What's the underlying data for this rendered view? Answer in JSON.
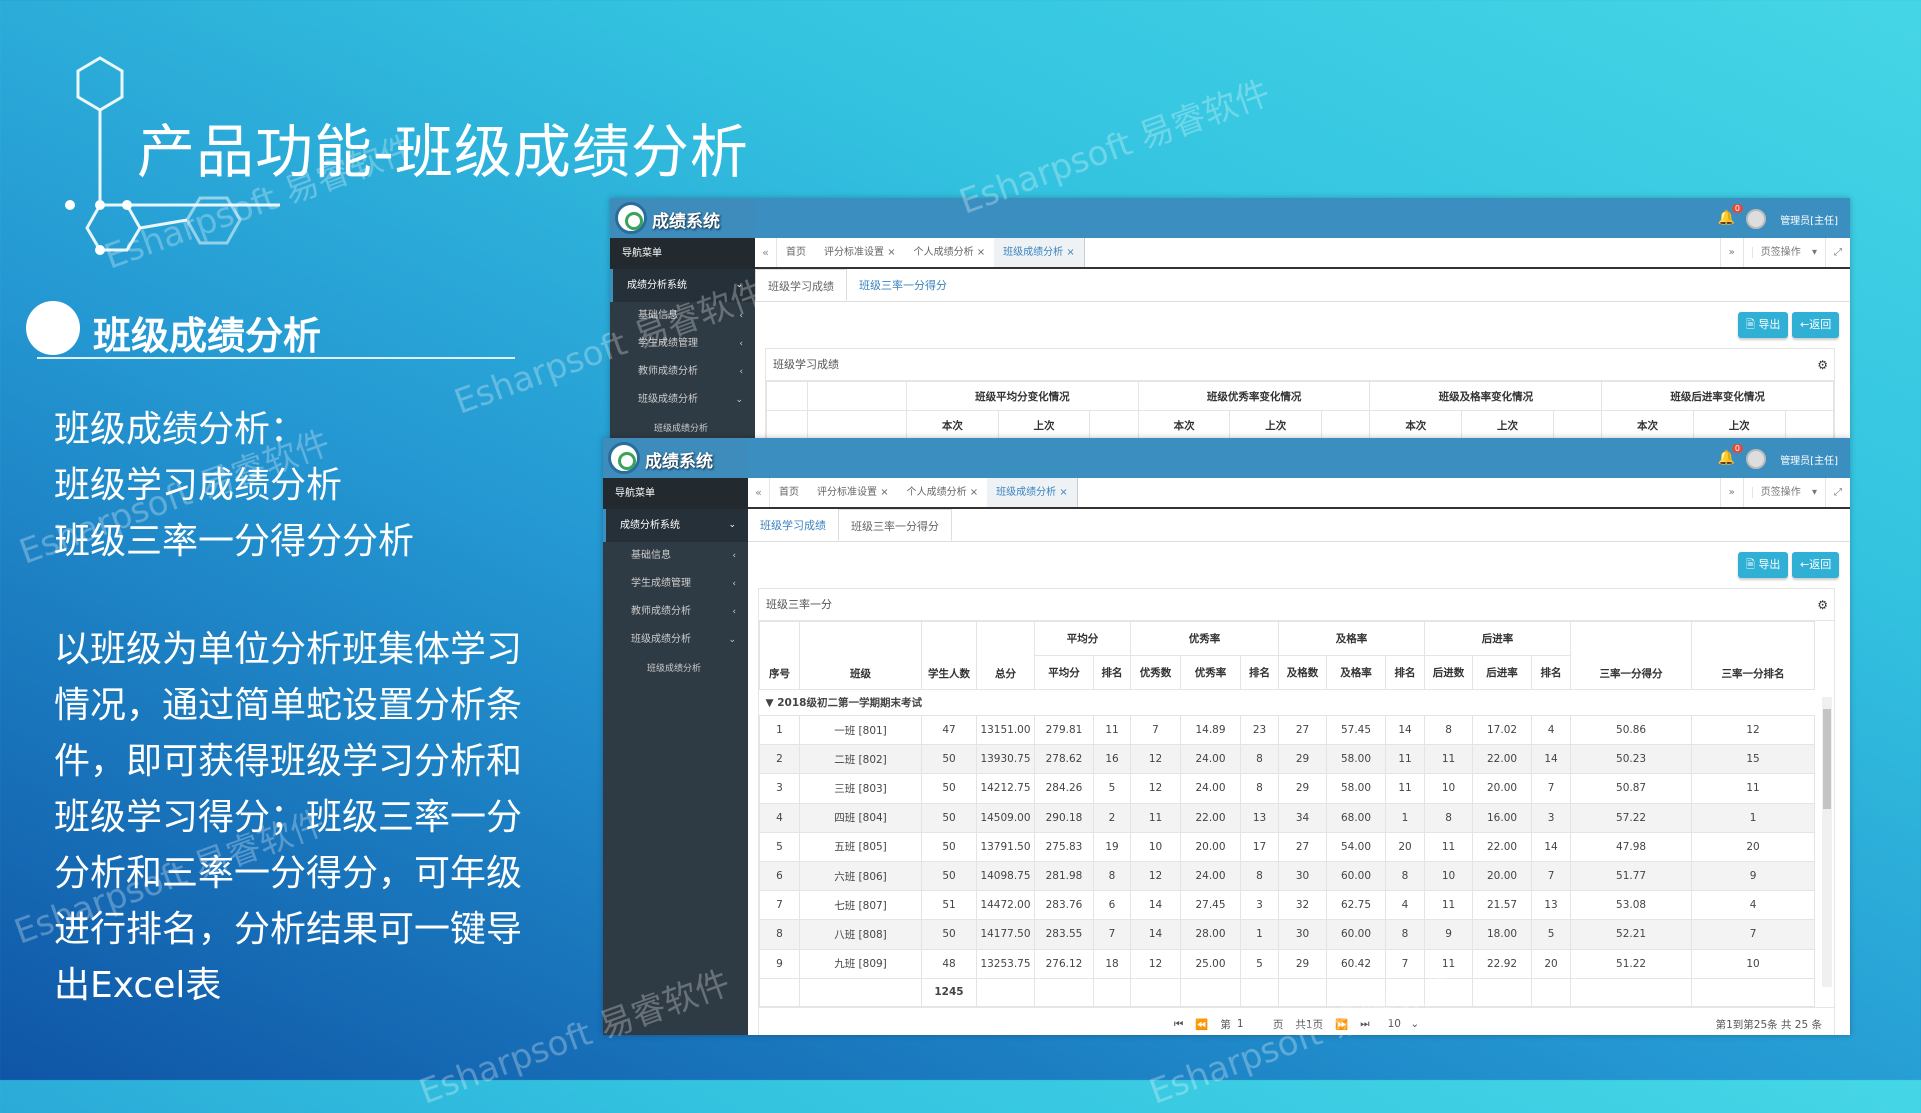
{
  "slide": {
    "title": "产品功能-班级成绩分析",
    "section_heading": "班级成绩分析",
    "feature_lines": [
      "班级成绩分析：",
      "班级学习成绩分析",
      "班级三率一分得分分析"
    ],
    "description": "以班级为单位分析班集体学习情况，通过简单蛇设置分析条件，即可获得班级学习分析和班级学习得分；班级三率一分分析和三率一分得分，可年级进行排名，分析结果可一键导出Excel表",
    "watermark": "Esharpsoft 易睿软件",
    "colors": {
      "bg_top": "#45d6e6",
      "bg_bottom": "#0f55a6",
      "app_header": "#3b8fc0",
      "sidebar": "#2f3b44",
      "button": "#31b0d5"
    }
  },
  "app": {
    "name": "成绩系统",
    "notification_count": "0",
    "user": "管理员[主任]",
    "sidebar": {
      "nav_label": "导航菜单",
      "system": "成绩分析系统",
      "items": [
        "基础信息",
        "学生成绩管理",
        "教师成绩分析",
        "班级成绩分析"
      ],
      "sub_item": "班级成绩分析"
    },
    "tabs": [
      "首页",
      "评分标准设置",
      "个人成绩分析",
      "班级成绩分析"
    ],
    "active_tab": "班级成绩分析",
    "page_ops": "页签操作",
    "subtabs": [
      "班级学习成绩",
      "班级三率一分得分"
    ],
    "export_label": "导出",
    "back_label": "返回"
  },
  "top_view": {
    "panel_title": "班级学习成绩",
    "groups": [
      "班级平均分变化情况",
      "班级优秀率变化情况",
      "班级及格率变化情况",
      "班级后进率变化情况"
    ],
    "sub_headers": [
      "本次",
      "上次"
    ]
  },
  "bottom_view": {
    "panel_title": "班级三率一分",
    "group_headers": [
      "平均分",
      "优秀率",
      "及格率",
      "后进率"
    ],
    "columns": [
      "序号",
      "班级",
      "学生人数",
      "总分",
      "平均分",
      "排名",
      "优秀数",
      "优秀率",
      "排名",
      "及格数",
      "及格率",
      "排名",
      "后进数",
      "后进率",
      "排名",
      "三率一分得分",
      "三率一分排名"
    ],
    "group_row": "2018级初二第一学期期末考试",
    "rows": [
      [
        "1",
        "一班  [801]",
        "47",
        "13151.00",
        "279.81",
        "11",
        "7",
        "14.89",
        "23",
        "27",
        "57.45",
        "14",
        "8",
        "17.02",
        "4",
        "50.86",
        "12"
      ],
      [
        "2",
        "二班  [802]",
        "50",
        "13930.75",
        "278.62",
        "16",
        "12",
        "24.00",
        "8",
        "29",
        "58.00",
        "11",
        "11",
        "22.00",
        "14",
        "50.23",
        "15"
      ],
      [
        "3",
        "三班  [803]",
        "50",
        "14212.75",
        "284.26",
        "5",
        "12",
        "24.00",
        "8",
        "29",
        "58.00",
        "11",
        "10",
        "20.00",
        "7",
        "50.87",
        "11"
      ],
      [
        "4",
        "四班  [804]",
        "50",
        "14509.00",
        "290.18",
        "2",
        "11",
        "22.00",
        "13",
        "34",
        "68.00",
        "1",
        "8",
        "16.00",
        "3",
        "57.22",
        "1"
      ],
      [
        "5",
        "五班  [805]",
        "50",
        "13791.50",
        "275.83",
        "19",
        "10",
        "20.00",
        "17",
        "27",
        "54.00",
        "20",
        "11",
        "22.00",
        "14",
        "47.98",
        "20"
      ],
      [
        "6",
        "六班  [806]",
        "50",
        "14098.75",
        "281.98",
        "8",
        "12",
        "24.00",
        "8",
        "30",
        "60.00",
        "8",
        "10",
        "20.00",
        "7",
        "51.77",
        "9"
      ],
      [
        "7",
        "七班  [807]",
        "51",
        "14472.00",
        "283.76",
        "6",
        "14",
        "27.45",
        "3",
        "32",
        "62.75",
        "4",
        "11",
        "21.57",
        "13",
        "53.08",
        "4"
      ],
      [
        "8",
        "八班  [808]",
        "50",
        "14177.50",
        "283.55",
        "7",
        "14",
        "28.00",
        "1",
        "30",
        "60.00",
        "8",
        "9",
        "18.00",
        "5",
        "52.21",
        "7"
      ],
      [
        "9",
        "九班  [809]",
        "48",
        "13253.75",
        "276.12",
        "18",
        "12",
        "25.00",
        "5",
        "29",
        "60.42",
        "7",
        "11",
        "22.92",
        "20",
        "51.22",
        "10"
      ]
    ],
    "total_students": "1245",
    "pager": {
      "page_prefix": "第",
      "page": "1",
      "page_suffix": "页",
      "total_pages": "共1页",
      "page_size": "10",
      "info": "第1到第25条  共 25 条"
    }
  }
}
